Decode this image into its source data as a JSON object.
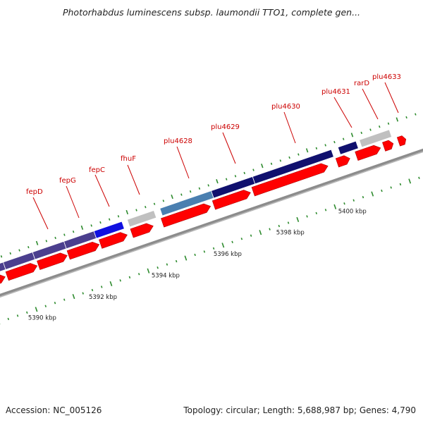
{
  "title": "Photorhabdus luminescens subsp. laumondii TTO1, complete gen...",
  "accession_text": "Accession: NC_005126",
  "summary_text": "Topology: circular; Length: 5,688,987 bp; Genes: 4,790",
  "colors": {
    "cds_forward": "#ff0000",
    "backbone": "#8c8c8c",
    "tick": "#2e8b2e",
    "label": "#cc0000",
    "gene_navy": "#10106e",
    "gene_slate": "#4b3f8e",
    "gene_blue": "#1010e0",
    "gene_steel": "#4a7fb0",
    "gene_gray": "#c0c0c0"
  },
  "gene_labels": [
    "fepD",
    "fepG",
    "fepC",
    "fhuF",
    "plu4628",
    "plu4629",
    "plu4630",
    "plu4631",
    "rarD",
    "plu4633"
  ],
  "scale_labels": [
    "5390 kbp",
    "5392 kbp",
    "5394 kbp",
    "5396 kbp",
    "5398 kbp",
    "5400 kbp"
  ]
}
